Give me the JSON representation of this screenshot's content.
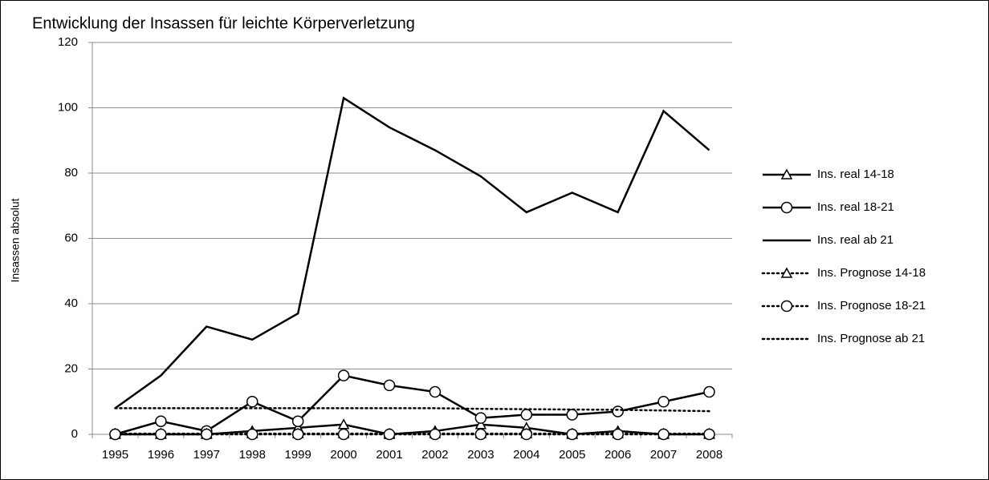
{
  "chart_data": {
    "type": "line",
    "title": "Entwicklung der Insassen für leichte Körperverletzung",
    "y_label": "Insassen absolut",
    "categories": [
      "1995",
      "1996",
      "1997",
      "1998",
      "1999",
      "2000",
      "2001",
      "2002",
      "2003",
      "2004",
      "2005",
      "2006",
      "2007",
      "2008"
    ],
    "series": [
      {
        "name": "Ins. real 14-18",
        "color": "#000000",
        "marker": "triangle",
        "dash": "solid",
        "values": [
          0,
          0,
          0,
          1,
          2,
          3,
          0,
          1,
          3,
          2,
          0,
          1,
          0,
          0
        ]
      },
      {
        "name": "Ins. real 18-21",
        "color": "#000000",
        "marker": "circle",
        "dash": "solid",
        "values": [
          0,
          4,
          1,
          10,
          4,
          18,
          15,
          13,
          5,
          6,
          6,
          7,
          10,
          13
        ]
      },
      {
        "name": "Ins. real ab 21",
        "color": "#000000",
        "marker": "none",
        "dash": "solid",
        "values": [
          8,
          18,
          33,
          29,
          37,
          103,
          94,
          87,
          79,
          68,
          74,
          68,
          99,
          87
        ]
      },
      {
        "name": "Ins. Prognose 14-18",
        "color": "#000000",
        "marker": "triangle",
        "dash": "dotted",
        "values": [
          0.2,
          0.2,
          0.2,
          0.2,
          0.2,
          0.2,
          0.2,
          0.2,
          0.2,
          0.2,
          0.2,
          0.2,
          0.2,
          0.2
        ]
      },
      {
        "name": "Ins. Prognose 18-21",
        "color": "#000000",
        "marker": "circle",
        "dash": "dotted",
        "values": [
          0,
          0,
          0,
          0,
          0,
          0,
          0,
          0,
          0,
          0,
          0,
          0,
          0,
          0
        ]
      },
      {
        "name": "Ins. Prognose ab 21",
        "color": "#000000",
        "marker": "none",
        "dash": "dotted",
        "values": [
          8,
          8,
          8,
          8,
          8,
          8,
          8,
          8,
          7.8,
          7.7,
          7.6,
          7.5,
          7.3,
          7.1
        ]
      }
    ],
    "ylim": [
      0,
      120
    ],
    "yticks": [
      0,
      20,
      40,
      60,
      80,
      100,
      120
    ],
    "grid": true,
    "legend": "right"
  }
}
